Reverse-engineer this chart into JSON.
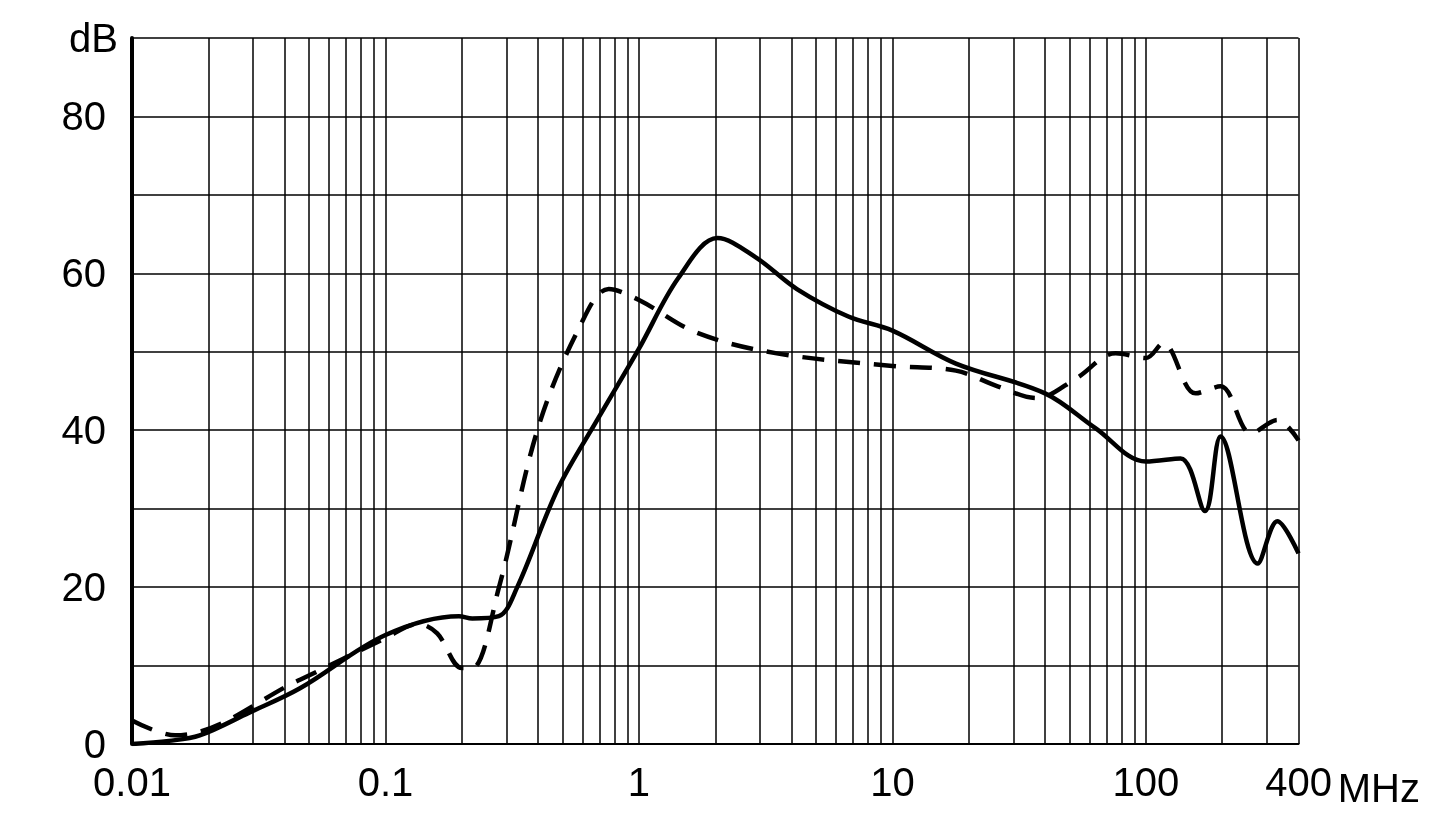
{
  "chart_data": {
    "type": "line",
    "xlabel": "MHz",
    "ylabel": "dB",
    "log": "x",
    "grid": true,
    "marker": "none",
    "xlim": [
      0.01,
      400
    ],
    "xticks": [
      0.01,
      {
        "value": 0.02,
        "label": null
      },
      {
        "value": 0.03,
        "label": null
      },
      {
        "value": 0.04,
        "label": null
      },
      {
        "value": 0.05,
        "label": null
      },
      {
        "value": 0.06,
        "label": null
      },
      {
        "value": 0.07,
        "label": null
      },
      {
        "value": 0.08,
        "label": null
      },
      {
        "value": 0.09,
        "label": null
      },
      0.1,
      {
        "value": 0.2,
        "label": null
      },
      {
        "value": 0.3,
        "label": null
      },
      {
        "value": 0.4,
        "label": null
      },
      {
        "value": 0.5,
        "label": null
      },
      {
        "value": 0.6,
        "label": null
      },
      {
        "value": 0.7,
        "label": null
      },
      {
        "value": 0.8,
        "label": null
      },
      {
        "value": 0.9,
        "label": null
      },
      1,
      {
        "value": 2,
        "label": null
      },
      {
        "value": 3,
        "label": null
      },
      {
        "value": 4,
        "label": null
      },
      {
        "value": 5,
        "label": null
      },
      {
        "value": 6,
        "label": null
      },
      {
        "value": 7,
        "label": null
      },
      {
        "value": 8,
        "label": null
      },
      {
        "value": 9,
        "label": null
      },
      10,
      {
        "value": 20,
        "label": null
      },
      {
        "value": 30,
        "label": null
      },
      {
        "value": 40,
        "label": null
      },
      {
        "value": 50,
        "label": null
      },
      {
        "value": 60,
        "label": null
      },
      {
        "value": 70,
        "label": null
      },
      {
        "value": 80,
        "label": null
      },
      {
        "value": 90,
        "label": null
      },
      100,
      {
        "value": 200,
        "label": null
      },
      {
        "value": 300,
        "label": null
      },
      400
    ],
    "ylim": [
      0,
      90
    ],
    "yticks": [
      0,
      {
        "value": 10,
        "label": null
      },
      20,
      {
        "value": 30,
        "label": null
      },
      40,
      {
        "value": 50,
        "label": null
      },
      60,
      {
        "value": 70,
        "label": null
      },
      80,
      {
        "value": 90,
        "label": null
      }
    ],
    "series": [
      {
        "color": "#000000",
        "line_style": "solid",
        "x": [
          0.01,
          0.014,
          0.0185,
          0.029,
          0.046,
          0.1,
          0.195,
          0.22,
          0.28,
          0.33,
          0.48,
          0.69,
          1,
          1.43,
          2.04,
          2.9,
          4.2,
          6.7,
          10,
          17.8,
          40,
          63,
          100,
          137,
          171,
          197,
          276,
          330,
          400
        ],
        "values": [
          0,
          0.4,
          1.1,
          4,
          7.1,
          13.9,
          16.3,
          16,
          16.3,
          19.9,
          32.6,
          41.5,
          50.4,
          59.4,
          64.5,
          62,
          58,
          54.5,
          52.7,
          48.5,
          44.7,
          40.3,
          36,
          36.4,
          29.7,
          39.2,
          23,
          28.4,
          24.3
        ]
      },
      {
        "color": "#000000",
        "line_style": "dashed",
        "x": [
          0.01,
          0.0148,
          0.046,
          0.1,
          0.135,
          0.16,
          0.2,
          0.22,
          0.28,
          0.4,
          0.58,
          0.76,
          1,
          1.7,
          3.5,
          10,
          17.8,
          26,
          37,
          53,
          76,
          100,
          117,
          157,
          197,
          260,
          330,
          400
        ],
        "values": [
          3,
          1.1,
          8.2,
          13.5,
          15.3,
          14.1,
          9.7,
          9.7,
          19.9,
          40.3,
          53,
          58,
          56.6,
          52.4,
          49.8,
          48.2,
          47.6,
          45.6,
          44.1,
          46.6,
          49.8,
          49.2,
          51.1,
          44.7,
          45.6,
          39.6,
          41.3,
          38.7
        ]
      }
    ]
  }
}
